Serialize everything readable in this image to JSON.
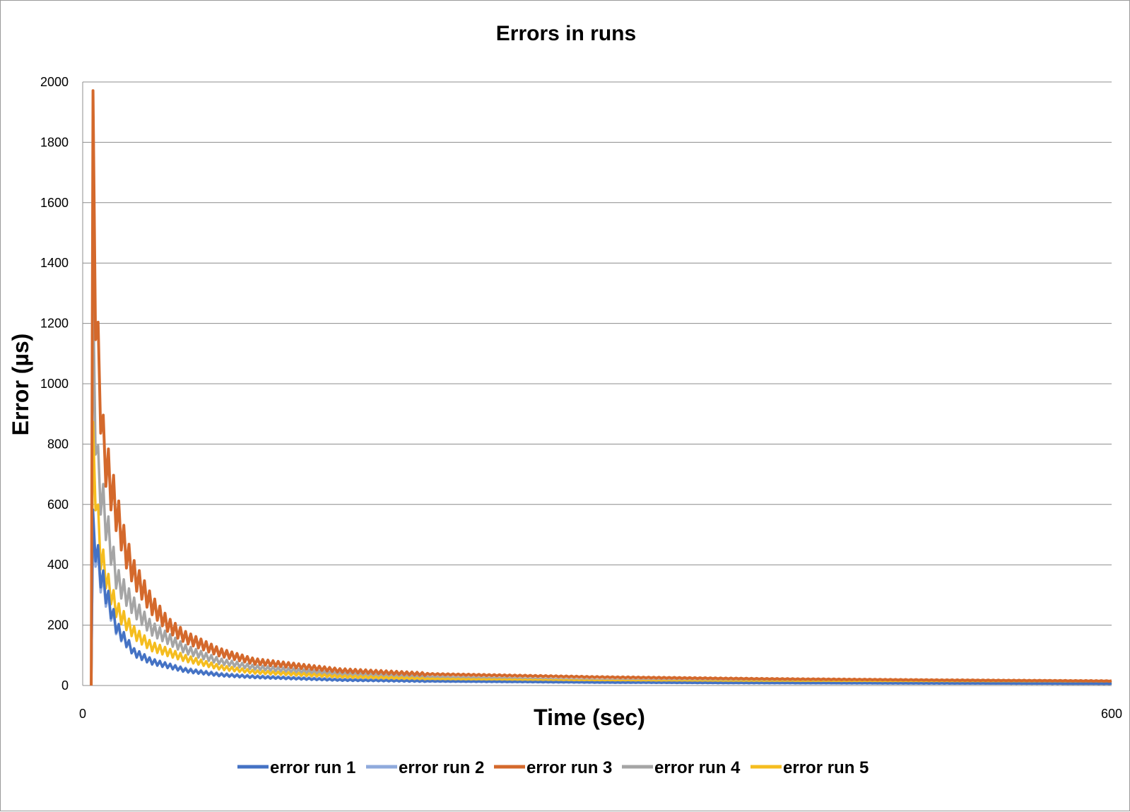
{
  "chart_data": {
    "type": "line",
    "title": "Errors in runs",
    "xlabel": "Time (sec)",
    "ylabel": "Error (µs)",
    "xlim": [
      0,
      600
    ],
    "ylim": [
      0,
      2000
    ],
    "x_ticks": [
      "0",
      "600"
    ],
    "y_ticks": [
      "0",
      "200",
      "400",
      "600",
      "800",
      "1000",
      "1200",
      "1400",
      "1600",
      "1800",
      "2000"
    ],
    "grid": true,
    "legend_position": "bottom",
    "series": [
      {
        "name": "error run 1",
        "color": "#4472c4",
        "x": [
          5,
          6,
          10,
          15,
          20,
          30,
          40,
          60,
          80,
          100,
          150,
          200,
          300,
          400,
          500,
          600
        ],
        "y": [
          0,
          520,
          380,
          280,
          190,
          110,
          80,
          50,
          35,
          28,
          18,
          14,
          10,
          8,
          7,
          6
        ]
      },
      {
        "name": "error run 2",
        "color": "#8faadc",
        "x": [
          5,
          6,
          10,
          15,
          20,
          30,
          40,
          60,
          80,
          100,
          150,
          200,
          300,
          400,
          500,
          600
        ],
        "y": [
          0,
          500,
          360,
          270,
          185,
          110,
          80,
          52,
          37,
          30,
          20,
          15,
          11,
          9,
          7,
          6
        ]
      },
      {
        "name": "error run 3",
        "color": "#d4692c",
        "x": [
          5,
          6,
          8,
          10,
          12,
          15,
          20,
          25,
          30,
          40,
          50,
          60,
          80,
          100,
          150,
          200,
          300,
          400,
          500,
          600
        ],
        "y": [
          0,
          1760,
          1150,
          1000,
          800,
          700,
          570,
          450,
          370,
          270,
          200,
          160,
          110,
          80,
          50,
          38,
          28,
          22,
          18,
          15
        ]
      },
      {
        "name": "error run 4",
        "color": "#a5a5a5",
        "x": [
          5,
          6,
          8,
          10,
          15,
          20,
          30,
          40,
          60,
          80,
          100,
          150,
          200,
          300,
          400,
          500,
          600
        ],
        "y": [
          0,
          1200,
          760,
          660,
          500,
          350,
          260,
          190,
          120,
          80,
          60,
          38,
          28,
          18,
          14,
          12,
          10
        ]
      },
      {
        "name": "error run 5",
        "color": "#f5bd1f",
        "x": [
          5,
          6,
          8,
          10,
          15,
          20,
          30,
          40,
          60,
          80,
          100,
          150,
          200,
          300,
          400,
          500,
          600
        ],
        "y": [
          0,
          780,
          620,
          450,
          330,
          250,
          175,
          130,
          90,
          60,
          45,
          30,
          22,
          15,
          12,
          10,
          9
        ]
      }
    ]
  }
}
